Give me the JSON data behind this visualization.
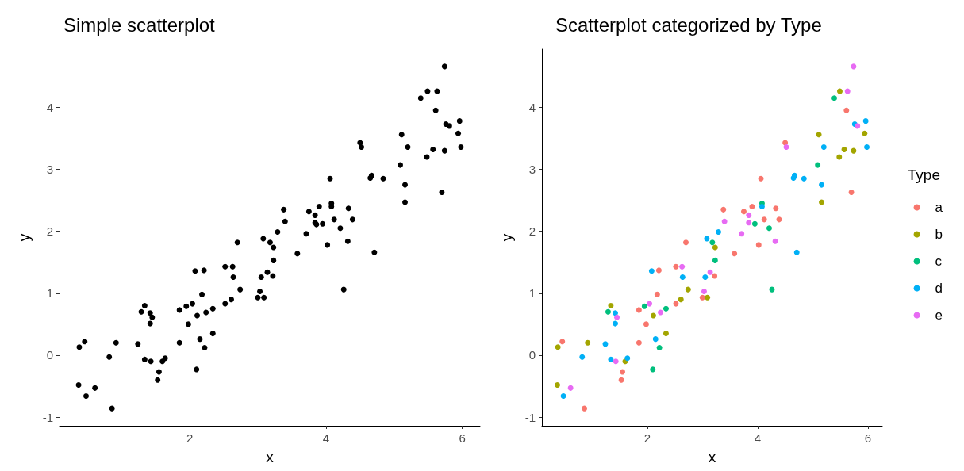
{
  "chart_data": [
    {
      "type": "scatter",
      "title": "Simple scatterplot",
      "xlabel": "x",
      "ylabel": "y",
      "xlim": [
        0.09,
        6.26
      ],
      "ylim": [
        -1.14,
        4.94
      ],
      "xticks": [
        2,
        4,
        6
      ],
      "yticks": [
        -1,
        0,
        1,
        2,
        3,
        4
      ],
      "grid": false,
      "legend": false,
      "marker": "circle",
      "series": [
        {
          "color": "#000000",
          "x": [
            2.21,
            2.18,
            1.85,
            1.98,
            0.46,
            1.85,
            1.55,
            1.53,
            0.86,
            4.06,
            3.38,
            3.75,
            3.9,
            4.12,
            4.33,
            2.7,
            4.02,
            3.58,
            2.52,
            3.22,
            3.0,
            2.52,
            5.61,
            4.5,
            5.7,
            4.39,
            1.34,
            2.11,
            2.34,
            0.38,
            0.92,
            1.6,
            0.37,
            3.23,
            2.74,
            3.09,
            2.61,
            5.49,
            5.94,
            5.11,
            5.57,
            5.74,
            5.48,
            5.16,
            1.29,
            1.95,
            2.34,
            2.22,
            2.1,
            4.08,
            3.95,
            4.21,
            3.18,
            3.23,
            4.26,
            5.39,
            5.09,
            2.08,
            1.42,
            1.42,
            1.24,
            2.15,
            0.82,
            1.34,
            1.64,
            0.48,
            4.08,
            3.86,
            3.29,
            3.08,
            2.64,
            3.05,
            5.96,
            5.76,
            5.2,
            5.98,
            4.67,
            4.65,
            4.84,
            5.16,
            4.71,
            1.45,
            2.04,
            2.24,
            1.43,
            0.61,
            3.84,
            3.84,
            3.4,
            3.71,
            4.32,
            2.63,
            3.14,
            3.03,
            5.74,
            5.63,
            5.81,
            4.52
          ],
          "values": [
            1.37,
            0.98,
            0.73,
            0.5,
            0.22,
            0.2,
            -0.27,
            -0.4,
            -0.86,
            2.85,
            2.35,
            2.32,
            2.4,
            2.19,
            2.37,
            1.82,
            1.78,
            1.64,
            1.43,
            1.28,
            0.93,
            0.83,
            3.95,
            3.43,
            2.63,
            2.19,
            0.8,
            0.64,
            0.35,
            0.13,
            0.2,
            -0.1,
            -0.48,
            1.74,
            1.06,
            0.93,
            0.9,
            4.26,
            3.58,
            3.56,
            3.32,
            3.3,
            3.2,
            2.47,
            0.7,
            0.79,
            0.75,
            0.12,
            -0.23,
            2.45,
            2.12,
            2.05,
            1.82,
            1.53,
            1.06,
            4.15,
            3.07,
            1.36,
            0.68,
            0.51,
            0.18,
            0.26,
            -0.03,
            -0.07,
            -0.05,
            -0.66,
            2.4,
            2.11,
            1.99,
            1.88,
            1.26,
            1.26,
            3.78,
            3.73,
            3.36,
            3.36,
            2.9,
            2.86,
            2.85,
            2.75,
            1.66,
            0.61,
            0.83,
            0.69,
            -0.1,
            -0.53,
            2.26,
            2.14,
            2.16,
            1.96,
            1.84,
            1.43,
            1.34,
            1.03,
            4.66,
            4.26,
            3.7,
            3.36
          ]
        }
      ]
    },
    {
      "type": "scatter",
      "title": "Scatterplot categorized by Type",
      "xlabel": "x",
      "ylabel": "y",
      "legend_title": "Type",
      "xlim": [
        0.09,
        6.26
      ],
      "ylim": [
        -1.14,
        4.94
      ],
      "xticks": [
        2,
        4,
        6
      ],
      "yticks": [
        -1,
        0,
        1,
        2,
        3,
        4
      ],
      "grid": false,
      "legend": "right",
      "marker": "circle",
      "series": [
        {
          "name": "a",
          "color": "#f8766d",
          "x": [
            2.21,
            2.18,
            1.85,
            1.98,
            0.46,
            1.85,
            1.55,
            1.53,
            0.86,
            4.06,
            3.38,
            3.75,
            3.9,
            4.12,
            4.33,
            2.7,
            4.02,
            3.58,
            2.52,
            3.22,
            3.0,
            2.52,
            5.61,
            4.5,
            5.7,
            4.39
          ],
          "values": [
            1.37,
            0.98,
            0.73,
            0.5,
            0.22,
            0.2,
            -0.27,
            -0.4,
            -0.86,
            2.85,
            2.35,
            2.32,
            2.4,
            2.19,
            2.37,
            1.82,
            1.78,
            1.64,
            1.43,
            1.28,
            0.93,
            0.83,
            3.95,
            3.43,
            2.63,
            2.19
          ]
        },
        {
          "name": "b",
          "color": "#a3a500",
          "x": [
            1.34,
            2.11,
            2.34,
            0.38,
            0.92,
            1.6,
            0.37,
            3.23,
            2.74,
            3.09,
            2.61,
            5.49,
            5.94,
            5.11,
            5.57,
            5.74,
            5.48,
            5.16
          ],
          "values": [
            0.8,
            0.64,
            0.35,
            0.13,
            0.2,
            -0.1,
            -0.48,
            1.74,
            1.06,
            0.93,
            0.9,
            4.26,
            3.58,
            3.56,
            3.32,
            3.3,
            3.2,
            2.47
          ]
        },
        {
          "name": "c",
          "color": "#00bf7d",
          "x": [
            1.29,
            1.95,
            2.34,
            2.22,
            2.1,
            4.08,
            3.95,
            4.21,
            3.18,
            3.23,
            4.26,
            5.39,
            5.09
          ],
          "values": [
            0.7,
            0.79,
            0.75,
            0.12,
            -0.23,
            2.45,
            2.12,
            2.05,
            1.82,
            1.53,
            1.06,
            4.15,
            3.07
          ]
        },
        {
          "name": "d",
          "color": "#00b0f6",
          "x": [
            2.08,
            1.42,
            1.42,
            1.24,
            2.15,
            0.82,
            1.34,
            1.64,
            0.48,
            4.08,
            3.29,
            3.08,
            2.64,
            3.05,
            5.96,
            5.76,
            5.2,
            5.98,
            4.67,
            4.65,
            4.84,
            5.16,
            4.71
          ],
          "values": [
            1.36,
            0.68,
            0.51,
            0.18,
            0.26,
            -0.03,
            -0.07,
            -0.05,
            -0.66,
            2.4,
            1.99,
            1.88,
            1.26,
            1.26,
            3.78,
            3.73,
            3.36,
            3.36,
            2.9,
            2.86,
            2.85,
            2.75,
            1.66
          ]
        },
        {
          "name": "e",
          "color": "#e76bf3",
          "x": [
            1.45,
            2.04,
            2.24,
            1.43,
            0.61,
            3.84,
            3.84,
            3.4,
            3.71,
            4.32,
            2.63,
            3.14,
            3.03,
            5.74,
            5.63,
            5.81,
            4.52
          ],
          "values": [
            0.61,
            0.83,
            0.69,
            -0.1,
            -0.53,
            2.26,
            2.14,
            2.16,
            1.96,
            1.84,
            1.43,
            1.34,
            1.03,
            4.66,
            4.26,
            3.7,
            3.36
          ]
        }
      ]
    }
  ]
}
